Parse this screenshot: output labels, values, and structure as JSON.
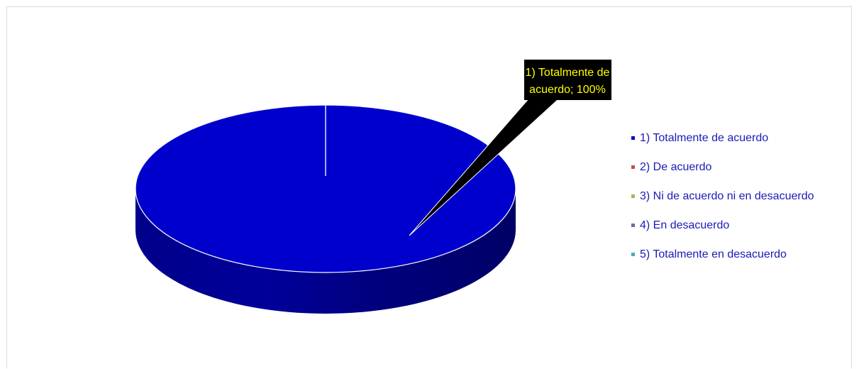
{
  "chart_data": {
    "type": "pie",
    "subtype": "3d-pie",
    "categories": [
      "1) Totalmente de acuerdo",
      "2) De acuerdo",
      "3) Ni de acuerdo ni en desacuerdo",
      "4) En desacuerdo",
      "5) Totalmente en desacuerdo"
    ],
    "values": [
      100,
      0,
      0,
      0,
      0
    ],
    "unit": "%",
    "colors": [
      "#0000cc",
      "#c0504d",
      "#9bbb59",
      "#8064a2",
      "#4bacc6"
    ],
    "legend_position": "right",
    "data_label": {
      "lines": [
        "1) Totalmente de",
        "acuerdo; 100%"
      ],
      "background": "#000000",
      "text_color": "#ffff00"
    },
    "grid": false
  }
}
